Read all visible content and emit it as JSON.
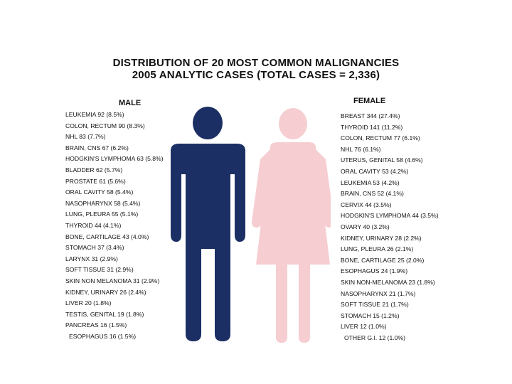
{
  "title": {
    "line1": "DISTRIBUTION OF 20 MOST COMMON MALIGNANCIES",
    "line2": "2005 ANALYTIC CASES (TOTAL CASES = 2,336)"
  },
  "male": {
    "heading": "MALE",
    "figure_color": "#1c2f64",
    "items": [
      "LEUKEMIA 92 (8.5%)",
      "COLON, RECTUM 90 (8.3%)",
      "NHL 83 (7.7%)",
      "BRAIN, CNS 67 (6.2%)",
      "HODGKIN'S LYMPHOMA 63 (5.8%)",
      "BLADDER 62 (5.7%)",
      "PROSTATE 61 (5.6%)",
      "ORAL CAVITY 58 (5.4%)",
      "NASOPHARYNX 58 (5.4%)",
      "LUNG, PLEURA 55 (5.1%)",
      "THYROID 44 (4.1%)",
      "BONE, CARTILAGE 43 (4.0%)",
      "STOMACH 37 (3.4%)",
      "LARYNX 31 (2.9%)",
      "SOFT TISSUE 31 (2.9%)",
      "SKIN NON MELANOMA 31 (2.9%)",
      "KIDNEY, URINARY 26 (2.4%)",
      "LIVER 20 (1.8%)",
      "TESTIS, GENITAL 19 (1.8%)",
      "PANCREAS 16 (1.5%)",
      "ESOPHAGUS 16 (1.5%)"
    ]
  },
  "female": {
    "heading": "FEMALE",
    "figure_color": "#f6cdd1",
    "items": [
      "BREAST 344 (27.4%)",
      "THYROID 141 (11.2%)",
      "COLON, RECTUM 77 (6.1%)",
      "NHL 76 (6.1%)",
      "UTERUS, GENITAL 58 (4.6%)",
      "ORAL CAVITY 53 (4.2%)",
      "LEUKEMIA 53 (4.2%)",
      "BRAIN, CNS 52 (4.1%)",
      "CERVIX 44 (3.5%)",
      "HODGKIN'S LYMPHOMA 44 (3.5%)",
      "OVARY 40 (3.2%)",
      "KIDNEY, URINARY 28 (2.2%)",
      "LUNG, PLEURA 26 (2.1%)",
      "BONE, CARTILAGE 25 (2.0%)",
      "ESOPHAGUS 24 (1.9%)",
      "SKIN NON-MELANOMA 23 (1.8%)",
      "NASOPHARYNX 21 (1.7%)",
      "SOFT TISSUE 21 (1.7%)",
      "STOMACH 15 (1.2%)",
      "LIVER 12 (1.0%)",
      "OTHER G.I. 12 (1.0%)"
    ]
  }
}
